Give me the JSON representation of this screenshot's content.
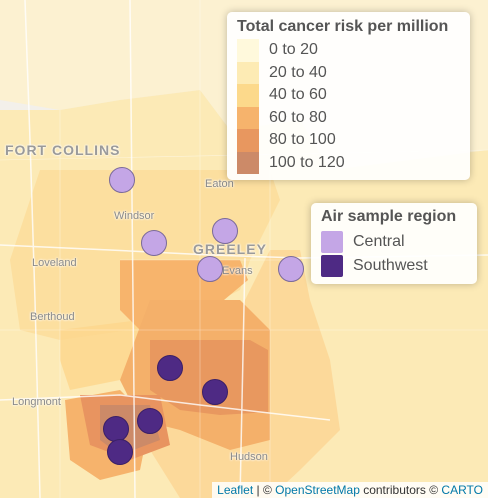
{
  "places": [
    {
      "name": "FORT COLLINS",
      "size": "big"
    },
    {
      "name": "Windsor",
      "size": "small"
    },
    {
      "name": "GREELEY",
      "size": "big"
    },
    {
      "name": "Loveland",
      "size": "small"
    },
    {
      "name": "Evans",
      "size": "small"
    },
    {
      "name": "Eaton",
      "size": "small"
    },
    {
      "name": "Berthoud",
      "size": "small"
    },
    {
      "name": "Longmont",
      "size": "small"
    },
    {
      "name": "Hudson",
      "size": "small"
    }
  ],
  "risk_legend": {
    "title": "Total cancer risk per million",
    "items": [
      {
        "label": "0 to 20",
        "color": "#fff9dc"
      },
      {
        "label": "20 to 40",
        "color": "#fdebb4"
      },
      {
        "label": "40 to 60",
        "color": "#fcd98b"
      },
      {
        "label": "60 to 80",
        "color": "#f6b36c"
      },
      {
        "label": "80 to 100",
        "color": "#e8975f"
      },
      {
        "label": "100 to 120",
        "color": "#cc8a68"
      }
    ]
  },
  "sample_legend": {
    "title": "Air sample region",
    "items": [
      {
        "label": "Central",
        "color": "#c4a6e6"
      },
      {
        "label": "Southwest",
        "color": "#4e2a84"
      }
    ]
  },
  "markers": [
    {
      "region": "Central"
    },
    {
      "region": "Central"
    },
    {
      "region": "Central"
    },
    {
      "region": "Central"
    },
    {
      "region": "Central"
    },
    {
      "region": "Southwest"
    },
    {
      "region": "Southwest"
    },
    {
      "region": "Southwest"
    },
    {
      "region": "Southwest"
    },
    {
      "region": "Southwest"
    }
  ],
  "attribution": {
    "leaflet": "Leaflet",
    "sep1": " | © ",
    "osm": "OpenStreetMap",
    "mid": " contributors © ",
    "carto": "CARTO"
  }
}
